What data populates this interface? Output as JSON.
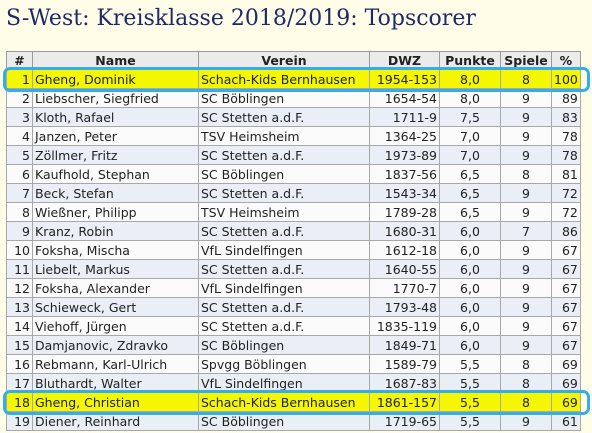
{
  "page": {
    "title": "S-West: Kreisklasse 2018/2019: Topscorer"
  },
  "table": {
    "headers": [
      "#",
      "Name",
      "Verein",
      "DWZ",
      "Punkte",
      "Spiele",
      "%"
    ],
    "rows": [
      {
        "rank": "1",
        "name": "Gheng, Dominik",
        "club": "Schach-Kids Bernhausen",
        "dwz": "1954-153",
        "points": "8,0",
        "games": "8",
        "pct": "100",
        "highlighted": true
      },
      {
        "rank": "2",
        "name": "Liebscher, Siegfried",
        "club": "SC Böblingen",
        "dwz": "1654-54",
        "points": "8,0",
        "games": "9",
        "pct": "89",
        "highlighted": false
      },
      {
        "rank": "3",
        "name": "Kloth, Rafael",
        "club": "SC Stetten a.d.F.",
        "dwz": "1711-9",
        "points": "7,5",
        "games": "9",
        "pct": "83",
        "highlighted": false
      },
      {
        "rank": "4",
        "name": "Janzen, Peter",
        "club": "TSV Heimsheim",
        "dwz": "1364-25",
        "points": "7,0",
        "games": "9",
        "pct": "78",
        "highlighted": false
      },
      {
        "rank": "5",
        "name": "Zöllmer, Fritz",
        "club": "SC Stetten a.d.F.",
        "dwz": "1973-89",
        "points": "7,0",
        "games": "9",
        "pct": "78",
        "highlighted": false
      },
      {
        "rank": "6",
        "name": "Kaufhold, Stephan",
        "club": "SC Böblingen",
        "dwz": "1837-56",
        "points": "6,5",
        "games": "8",
        "pct": "81",
        "highlighted": false
      },
      {
        "rank": "7",
        "name": "Beck, Stefan",
        "club": "SC Stetten a.d.F.",
        "dwz": "1543-34",
        "points": "6,5",
        "games": "9",
        "pct": "72",
        "highlighted": false
      },
      {
        "rank": "8",
        "name": "Wießner, Philipp",
        "club": "TSV Heimsheim",
        "dwz": "1789-28",
        "points": "6,5",
        "games": "9",
        "pct": "72",
        "highlighted": false
      },
      {
        "rank": "9",
        "name": "Kranz, Robin",
        "club": "SC Stetten a.d.F.",
        "dwz": "1680-31",
        "points": "6,0",
        "games": "7",
        "pct": "86",
        "highlighted": false
      },
      {
        "rank": "10",
        "name": "Foksha, Mischa",
        "club": "VfL Sindelfingen",
        "dwz": "1612-18",
        "points": "6,0",
        "games": "9",
        "pct": "67",
        "highlighted": false
      },
      {
        "rank": "11",
        "name": "Liebelt, Markus",
        "club": "SC Stetten a.d.F.",
        "dwz": "1640-55",
        "points": "6,0",
        "games": "9",
        "pct": "67",
        "highlighted": false
      },
      {
        "rank": "12",
        "name": "Foksha, Alexander",
        "club": "VfL Sindelfingen",
        "dwz": "1770-7",
        "points": "6,0",
        "games": "9",
        "pct": "67",
        "highlighted": false
      },
      {
        "rank": "13",
        "name": "Schieweck, Gert",
        "club": "SC Stetten a.d.F.",
        "dwz": "1793-48",
        "points": "6,0",
        "games": "9",
        "pct": "67",
        "highlighted": false
      },
      {
        "rank": "14",
        "name": "Viehoff, Jürgen",
        "club": "SC Stetten a.d.F.",
        "dwz": "1835-119",
        "points": "6,0",
        "games": "9",
        "pct": "67",
        "highlighted": false
      },
      {
        "rank": "15",
        "name": "Damjanovic, Zdravko",
        "club": "SC Böblingen",
        "dwz": "1849-71",
        "points": "6,0",
        "games": "9",
        "pct": "67",
        "highlighted": false
      },
      {
        "rank": "16",
        "name": "Rebmann, Karl-Ulrich",
        "club": "Spvgg Böblingen",
        "dwz": "1589-79",
        "points": "5,5",
        "games": "8",
        "pct": "69",
        "highlighted": false
      },
      {
        "rank": "17",
        "name": "Bluthardt, Walter",
        "club": "VfL Sindelfingen",
        "dwz": "1687-83",
        "points": "5,5",
        "games": "8",
        "pct": "69",
        "highlighted": false
      },
      {
        "rank": "18",
        "name": "Gheng, Christian",
        "club": "Schach-Kids Bernhausen",
        "dwz": "1861-157",
        "points": "5,5",
        "games": "8",
        "pct": "69",
        "highlighted": true
      },
      {
        "rank": "19",
        "name": "Diener, Reinhard",
        "club": "SC Böblingen",
        "dwz": "1719-65",
        "points": "5,5",
        "games": "9",
        "pct": "61",
        "highlighted": false
      }
    ]
  },
  "colors": {
    "title": "#1b2a6b",
    "highlight_fill": "#f4f700",
    "highlight_ring": "#33aeea",
    "odd_row": "#e9eef7",
    "even_row": "#fbfbfb",
    "header": "#ebebeb"
  }
}
